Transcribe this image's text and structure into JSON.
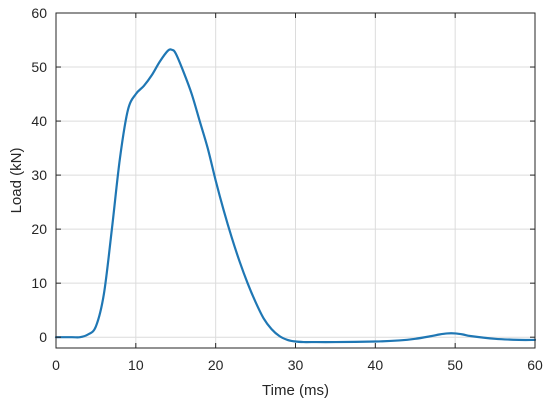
{
  "chart_data": {
    "type": "line",
    "title": "",
    "xlabel": "Time (ms)",
    "ylabel": "Load (kN)",
    "xlim": [
      0,
      60
    ],
    "ylim": [
      -2,
      60
    ],
    "xticks": [
      0,
      10,
      20,
      30,
      40,
      50,
      60
    ],
    "yticks": [
      0,
      10,
      20,
      30,
      40,
      50,
      60
    ],
    "grid": true,
    "legend": "none",
    "series": [
      {
        "color": "#1f77b4",
        "x": [
          0,
          2,
          3,
          4,
          5,
          6,
          7,
          8,
          9,
          10,
          11,
          12,
          13,
          14,
          14.5,
          15,
          16,
          17,
          18,
          19,
          20,
          21,
          22,
          23,
          24,
          25,
          26,
          27,
          28,
          29,
          30,
          31,
          32,
          35,
          40,
          43,
          45,
          47,
          48,
          49,
          50,
          51,
          52,
          55,
          58,
          60
        ],
        "y": [
          0,
          0,
          0,
          0.5,
          2,
          8,
          20,
          33,
          42,
          45,
          46.5,
          48.5,
          51,
          53,
          53.2,
          52.5,
          49,
          45,
          40,
          35,
          29,
          23.5,
          18.5,
          14,
          10,
          6.5,
          3.5,
          1.5,
          0.2,
          -0.5,
          -0.8,
          -0.9,
          -0.9,
          -0.9,
          -0.8,
          -0.6,
          -0.3,
          0.2,
          0.5,
          0.7,
          0.7,
          0.5,
          0.2,
          -0.3,
          -0.5,
          -0.5
        ]
      }
    ]
  }
}
